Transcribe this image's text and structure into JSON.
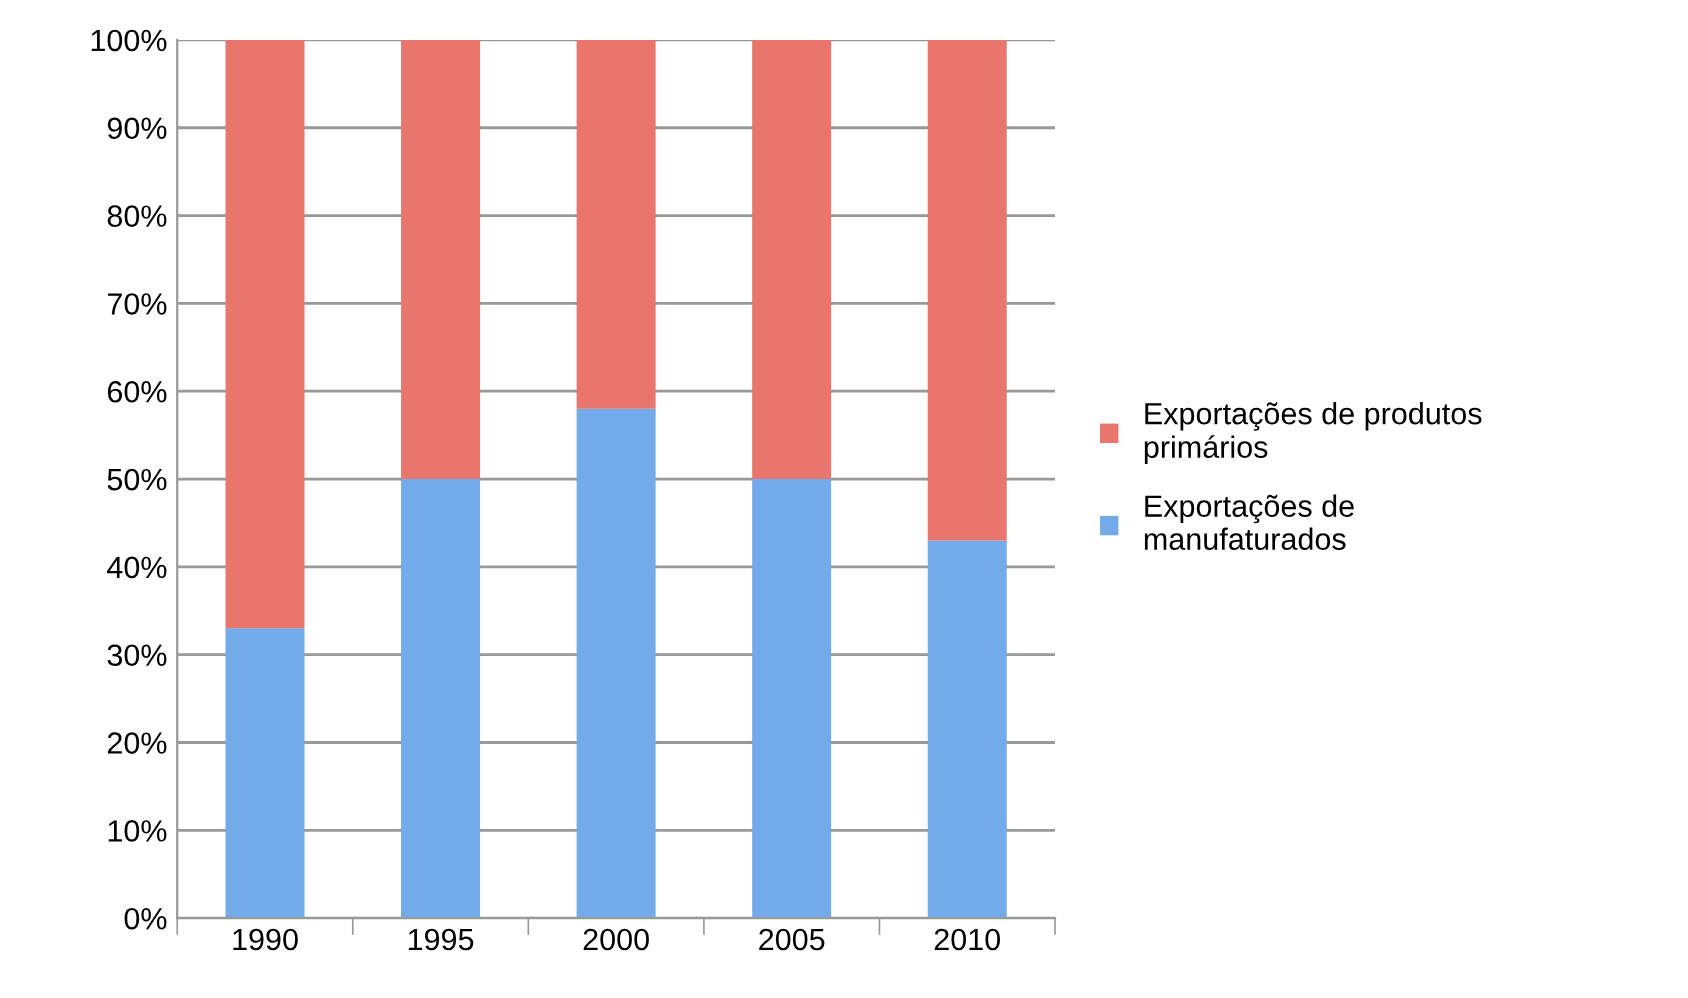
{
  "chart_data": {
    "type": "bar",
    "stacked": true,
    "categories": [
      "1990",
      "1995",
      "2000",
      "2005",
      "2010"
    ],
    "series": [
      {
        "name": "Exportações de\nmanufaturados",
        "color": "#72aaea",
        "values": [
          33,
          50,
          58,
          50,
          43
        ]
      },
      {
        "name": "Exportações de produtos\nprimários",
        "color": "#e8766c",
        "values": [
          67,
          50,
          42,
          50,
          57
        ]
      }
    ],
    "ylim": [
      0,
      100
    ],
    "yticks": [
      {
        "value": 0,
        "label": "0%"
      },
      {
        "value": 10,
        "label": "10%"
      },
      {
        "value": 20,
        "label": "20%"
      },
      {
        "value": 30,
        "label": "30%"
      },
      {
        "value": 40,
        "label": "40%"
      },
      {
        "value": 50,
        "label": "50%"
      },
      {
        "value": 60,
        "label": "60%"
      },
      {
        "value": 70,
        "label": "70%"
      },
      {
        "value": 80,
        "label": "80%"
      },
      {
        "value": 90,
        "label": "90%"
      },
      {
        "value": 100,
        "label": "100%"
      }
    ],
    "grid": "y",
    "legend": "right"
  }
}
